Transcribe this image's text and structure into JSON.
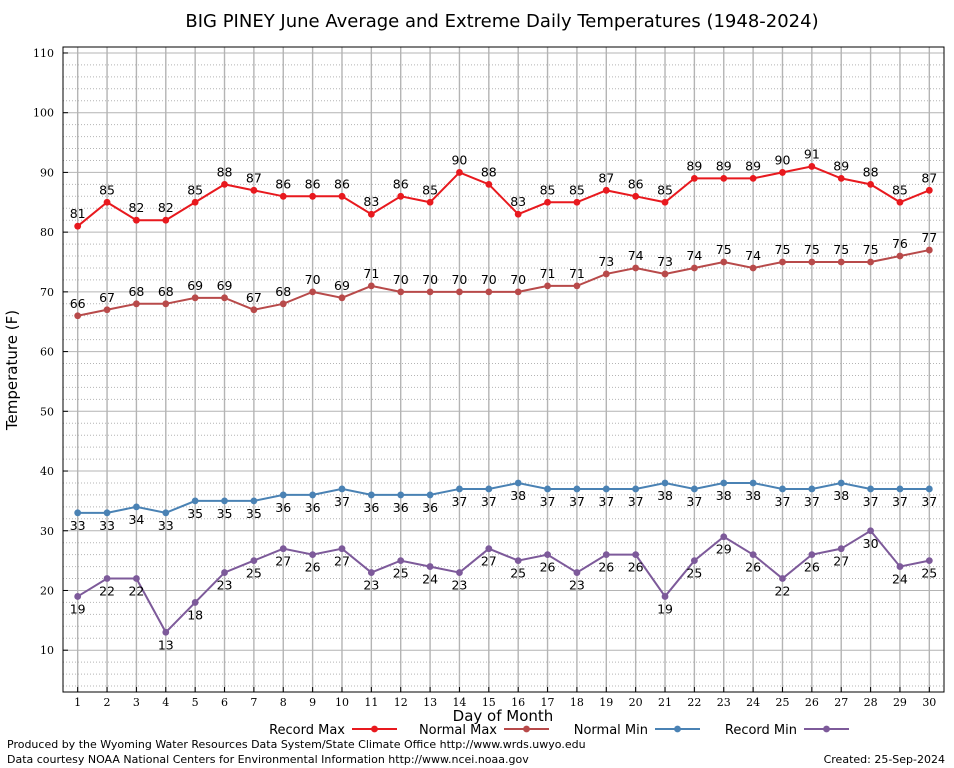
{
  "chart_data": {
    "type": "line",
    "title": "BIG PINEY June Average and Extreme Daily Temperatures (1948-2024)",
    "xlabel": "Day of Month",
    "ylabel": "Temperature (F)",
    "x": [
      1,
      2,
      3,
      4,
      5,
      6,
      7,
      8,
      9,
      10,
      11,
      12,
      13,
      14,
      15,
      16,
      17,
      18,
      19,
      20,
      21,
      22,
      23,
      24,
      25,
      26,
      27,
      28,
      29,
      30
    ],
    "xlim": [
      0.5,
      30.5
    ],
    "ylim": [
      3,
      111
    ],
    "yticks": [
      10,
      20,
      30,
      40,
      50,
      60,
      70,
      80,
      90,
      100,
      110
    ],
    "grid": true,
    "legend_position": "bottom",
    "series": [
      {
        "name": "Record Max",
        "color": "#e8191e",
        "values": [
          81,
          85,
          82,
          82,
          85,
          88,
          87,
          86,
          86,
          86,
          83,
          86,
          85,
          90,
          88,
          83,
          85,
          85,
          87,
          86,
          85,
          89,
          89,
          89,
          90,
          91,
          89,
          88,
          85,
          87
        ]
      },
      {
        "name": "Normal Max",
        "color": "#b84a4a",
        "values": [
          66,
          67,
          68,
          68,
          69,
          69,
          67,
          68,
          70,
          69,
          71,
          70,
          70,
          70,
          70,
          70,
          71,
          71,
          73,
          74,
          73,
          74,
          75,
          74,
          75,
          75,
          75,
          75,
          76,
          77
        ]
      },
      {
        "name": "Normal Min",
        "color": "#4a82b4",
        "values": [
          33,
          33,
          34,
          33,
          35,
          35,
          35,
          36,
          36,
          37,
          36,
          36,
          36,
          37,
          37,
          38,
          37,
          37,
          37,
          37,
          38,
          37,
          38,
          38,
          37,
          37,
          38,
          37,
          37,
          37
        ]
      },
      {
        "name": "Record Min",
        "color": "#7d5a9a",
        "values": [
          19,
          22,
          22,
          13,
          18,
          23,
          25,
          27,
          26,
          27,
          23,
          25,
          24,
          23,
          27,
          25,
          26,
          23,
          26,
          26,
          19,
          25,
          29,
          26,
          22,
          26,
          27,
          30,
          24,
          25
        ]
      }
    ]
  },
  "footer": {
    "produced_by": "Produced by the Wyoming Water Resources Data System/State Climate Office http://www.wrds.uwyo.edu",
    "courtesy": "Data courtesy NOAA National Centers for Environmental Information http://www.ncei.noaa.gov",
    "created": "Created:  25-Sep-2024"
  }
}
